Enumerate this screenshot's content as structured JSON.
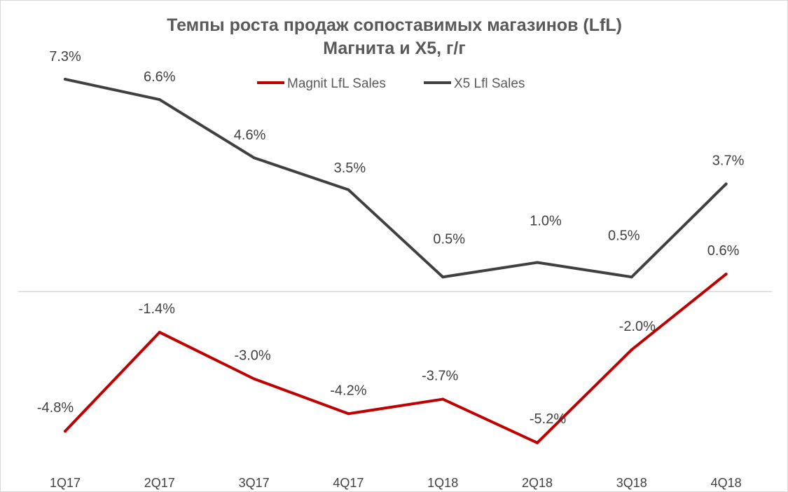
{
  "chart_data": {
    "type": "line",
    "title": "Темпы роста продаж сопоставимых магазинов (LfL)",
    "subtitle": "Магнита и Х5, г/г",
    "categories": [
      "1Q17",
      "2Q17",
      "3Q17",
      "4Q17",
      "1Q18",
      "2Q18",
      "3Q18",
      "4Q18"
    ],
    "series": [
      {
        "name": "Magnit LfL Sales",
        "color": "#c00000",
        "values": [
          -4.8,
          -1.4,
          -3.0,
          -4.2,
          -3.7,
          -5.2,
          -2.0,
          0.6
        ],
        "labels": [
          "-4.8%",
          "-1.4%",
          "-3.0%",
          "-4.2%",
          "-3.7%",
          "-5.2%",
          "-2.0%",
          "0.6%"
        ]
      },
      {
        "name": "X5 Lfl Sales",
        "color": "#404040",
        "values": [
          7.3,
          6.6,
          4.6,
          3.5,
          0.5,
          1.0,
          0.5,
          3.7
        ],
        "labels": [
          "7.3%",
          "6.6%",
          "4.6%",
          "3.5%",
          "0.5%",
          "1.0%",
          "0.5%",
          "3.7%"
        ]
      }
    ],
    "xlabel": "",
    "ylabel": "",
    "ylim": [
      -6,
      8
    ],
    "grid": false,
    "zero_line": true,
    "legend": "top-center"
  }
}
